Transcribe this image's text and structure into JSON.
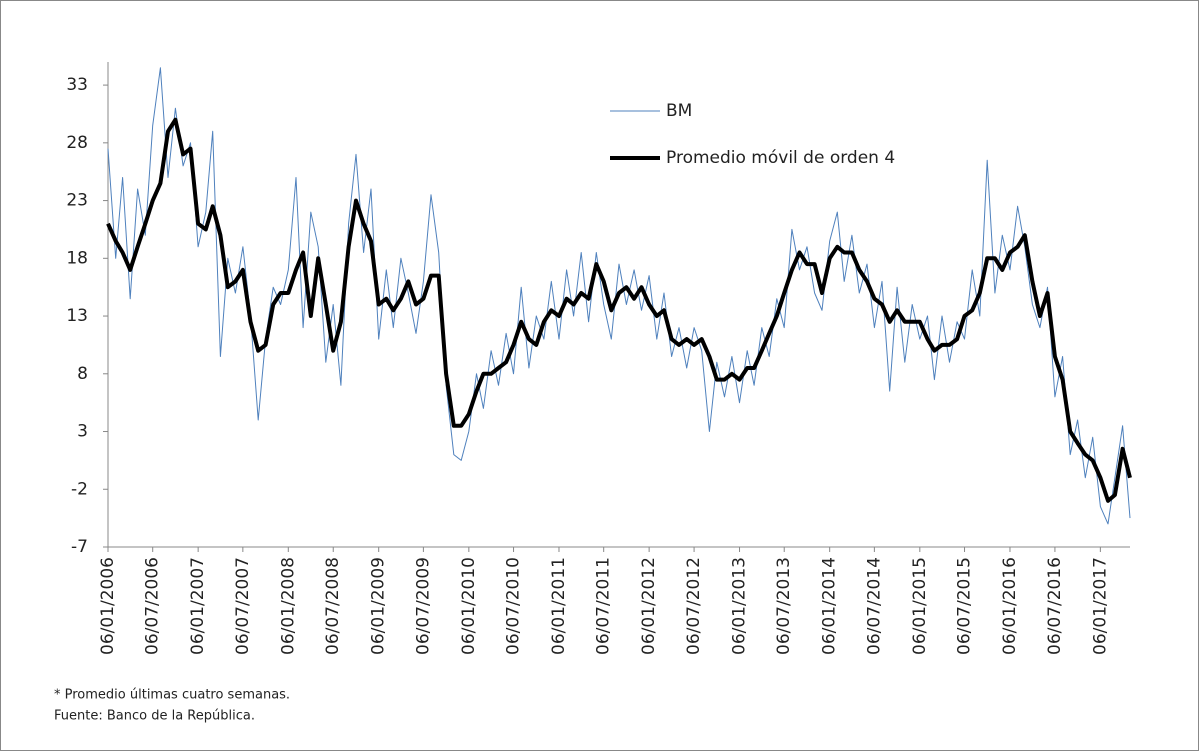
{
  "chart_data": {
    "type": "line",
    "x": [
      "2006-01-06",
      "2006-02-06",
      "2006-03-06",
      "2006-04-06",
      "2006-05-06",
      "2006-06-06",
      "2006-07-06",
      "2006-08-06",
      "2006-09-06",
      "2006-10-06",
      "2006-11-06",
      "2006-12-06",
      "2007-01-06",
      "2007-02-06",
      "2007-03-06",
      "2007-04-06",
      "2007-05-06",
      "2007-06-06",
      "2007-07-06",
      "2007-08-06",
      "2007-09-06",
      "2007-10-06",
      "2007-11-06",
      "2007-12-06",
      "2008-01-06",
      "2008-02-06",
      "2008-03-06",
      "2008-04-06",
      "2008-05-06",
      "2008-06-06",
      "2008-07-06",
      "2008-08-06",
      "2008-09-06",
      "2008-10-06",
      "2008-11-06",
      "2008-12-06",
      "2009-01-06",
      "2009-02-06",
      "2009-03-06",
      "2009-04-06",
      "2009-05-06",
      "2009-06-06",
      "2009-07-06",
      "2009-08-06",
      "2009-09-06",
      "2009-10-06",
      "2009-11-06",
      "2009-12-06",
      "2010-01-06",
      "2010-02-06",
      "2010-03-06",
      "2010-04-06",
      "2010-05-06",
      "2010-06-06",
      "2010-07-06",
      "2010-08-06",
      "2010-09-06",
      "2010-10-06",
      "2010-11-06",
      "2010-12-06",
      "2011-01-06",
      "2011-02-06",
      "2011-03-06",
      "2011-04-06",
      "2011-05-06",
      "2011-06-06",
      "2011-07-06",
      "2011-08-06",
      "2011-09-06",
      "2011-10-06",
      "2011-11-06",
      "2011-12-06",
      "2012-01-06",
      "2012-02-06",
      "2012-03-06",
      "2012-04-06",
      "2012-05-06",
      "2012-06-06",
      "2012-07-06",
      "2012-08-06",
      "2012-09-06",
      "2012-10-06",
      "2012-11-06",
      "2012-12-06",
      "2013-01-06",
      "2013-02-06",
      "2013-03-06",
      "2013-04-06",
      "2013-05-06",
      "2013-06-06",
      "2013-07-06",
      "2013-08-06",
      "2013-09-06",
      "2013-10-06",
      "2013-11-06",
      "2013-12-06",
      "2014-01-06",
      "2014-02-06",
      "2014-03-06",
      "2014-04-06",
      "2014-05-06",
      "2014-06-06",
      "2014-07-06",
      "2014-08-06",
      "2014-09-06",
      "2014-10-06",
      "2014-11-06",
      "2014-12-06",
      "2015-01-06",
      "2015-02-06",
      "2015-03-06",
      "2015-04-06",
      "2015-05-06",
      "2015-06-06",
      "2015-07-06",
      "2015-08-06",
      "2015-09-06",
      "2015-10-06",
      "2015-11-06",
      "2015-12-06",
      "2016-01-06",
      "2016-02-06",
      "2016-03-06",
      "2016-04-06",
      "2016-05-06",
      "2016-06-06",
      "2016-07-06",
      "2016-08-06",
      "2016-09-06",
      "2016-10-06",
      "2016-11-06",
      "2016-12-06",
      "2017-01-06",
      "2017-02-06",
      "2017-03-06",
      "2017-04-06",
      "2017-05-06"
    ],
    "series": [
      {
        "name": "BM",
        "color": "#4f81bd",
        "width": 1,
        "values": [
          27.5,
          18,
          25,
          14.5,
          24,
          20,
          29.5,
          34.5,
          25,
          31,
          26,
          28,
          19,
          22,
          29,
          9.5,
          18,
          15,
          19,
          13,
          4,
          11,
          15.5,
          14,
          17,
          25,
          12,
          22,
          19,
          9,
          14,
          7,
          21,
          27,
          18.5,
          24,
          11,
          17,
          12,
          18,
          15,
          11.5,
          16,
          23.5,
          18.5,
          7,
          1,
          0.5,
          3,
          8,
          5,
          10,
          7,
          11.5,
          8,
          15.5,
          8.5,
          13,
          11,
          16,
          11,
          17,
          13,
          18.5,
          12.5,
          18.5,
          14,
          11,
          17.5,
          14,
          17,
          13.5,
          16.5,
          11,
          15,
          9.5,
          12,
          8.5,
          12,
          10,
          3,
          9,
          6,
          9.5,
          5.5,
          10,
          7,
          12,
          9.5,
          14.5,
          12,
          20.5,
          17,
          19,
          15,
          13.5,
          19.5,
          22,
          16,
          20,
          15,
          17.5,
          12,
          16,
          6.5,
          15.5,
          9,
          14,
          11,
          13,
          7.5,
          13,
          9,
          12.5,
          11,
          17,
          13,
          26.5,
          15,
          20,
          17,
          22.5,
          19,
          14,
          12,
          15.5,
          6,
          9.5,
          1,
          4,
          -1,
          2.5,
          -3.5,
          -5,
          -1,
          3.5,
          -4.5
        ]
      },
      {
        "name": "Promedio móvil de orden 4",
        "color": "#000000",
        "width": 4,
        "values": [
          21,
          19.5,
          18.5,
          17,
          19,
          21,
          23,
          24.5,
          29,
          30,
          27,
          27.5,
          21,
          20.5,
          22.5,
          20,
          15.5,
          16,
          17,
          12.5,
          10,
          10.5,
          14,
          15,
          15,
          17,
          18.5,
          13,
          18,
          14,
          10,
          12.5,
          19,
          23,
          21,
          19.5,
          14,
          14.5,
          13.5,
          14.5,
          16,
          14,
          14.5,
          16.5,
          16.5,
          8,
          3.5,
          3.5,
          4.5,
          6.5,
          8,
          8,
          8.5,
          9,
          10.5,
          12.5,
          11,
          10.5,
          12.5,
          13.5,
          13,
          14.5,
          14,
          15,
          14.5,
          17.5,
          16,
          13.5,
          15,
          15.5,
          14.5,
          15.5,
          14,
          13,
          13.5,
          11,
          10.5,
          11,
          10.5,
          11,
          9.5,
          7.5,
          7.5,
          8,
          7.5,
          8.5,
          8.5,
          10,
          11.5,
          13,
          15,
          17,
          18.5,
          17.5,
          17.5,
          15,
          18,
          19,
          18.5,
          18.5,
          17,
          16,
          14.5,
          14,
          12.5,
          13.5,
          12.5,
          12.5,
          12.5,
          11,
          10,
          10.5,
          10.5,
          11,
          13,
          13.5,
          15,
          18,
          18,
          17,
          18.5,
          19,
          20,
          16,
          13,
          15,
          9.5,
          7.5,
          3,
          2,
          1,
          0.5,
          -1,
          -3,
          -2.5,
          1.5,
          -1
        ]
      }
    ],
    "xlim": [
      "2006-01-06",
      "2017-05-06"
    ],
    "xticks": [
      {
        "value": "2006-01-06",
        "label": "06/01/2006"
      },
      {
        "value": "2006-07-06",
        "label": "06/07/2006"
      },
      {
        "value": "2007-01-06",
        "label": "06/01/2007"
      },
      {
        "value": "2007-07-06",
        "label": "06/07/2007"
      },
      {
        "value": "2008-01-06",
        "label": "06/01/2008"
      },
      {
        "value": "2008-07-06",
        "label": "06/07/2008"
      },
      {
        "value": "2009-01-06",
        "label": "06/01/2009"
      },
      {
        "value": "2009-07-06",
        "label": "06/07/2009"
      },
      {
        "value": "2010-01-06",
        "label": "06/01/2010"
      },
      {
        "value": "2010-07-06",
        "label": "06/07/2010"
      },
      {
        "value": "2011-01-06",
        "label": "06/01/2011"
      },
      {
        "value": "2011-07-06",
        "label": "06/07/2011"
      },
      {
        "value": "2012-01-06",
        "label": "06/01/2012"
      },
      {
        "value": "2012-07-06",
        "label": "06/07/2012"
      },
      {
        "value": "2013-01-06",
        "label": "06/01/2013"
      },
      {
        "value": "2013-07-06",
        "label": "06/07/2013"
      },
      {
        "value": "2014-01-06",
        "label": "06/01/2014"
      },
      {
        "value": "2014-07-06",
        "label": "06/07/2014"
      },
      {
        "value": "2015-01-06",
        "label": "06/01/2015"
      },
      {
        "value": "2015-07-06",
        "label": "06/07/2015"
      },
      {
        "value": "2016-01-06",
        "label": "06/01/2016"
      },
      {
        "value": "2016-07-06",
        "label": "06/07/2016"
      },
      {
        "value": "2017-01-06",
        "label": "06/01/2017"
      }
    ],
    "ylim": [
      -7,
      35
    ],
    "yticks": [
      -7,
      -2,
      3,
      8,
      13,
      18,
      23,
      28,
      33
    ],
    "grid": false,
    "legend": "top",
    "notes": [
      "* Promedio últimas cuatro semanas.",
      "Fuente: Banco de la República."
    ]
  }
}
